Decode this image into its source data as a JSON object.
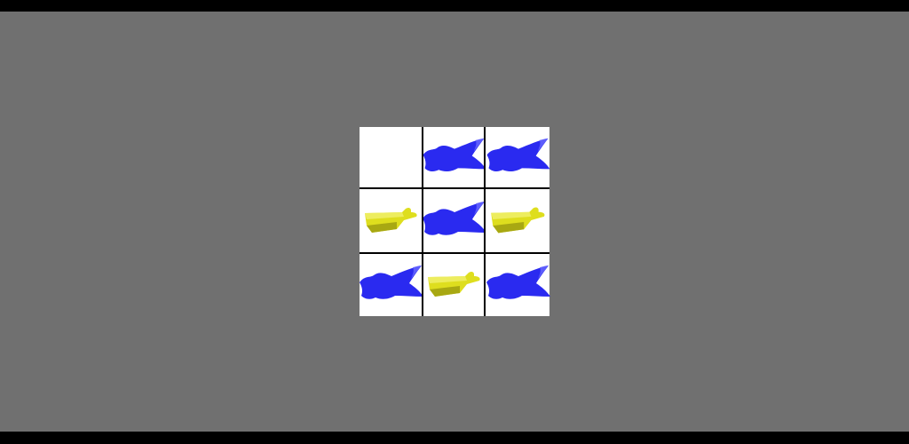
{
  "game": {
    "type": "tic-tac-toe",
    "colors": {
      "background": "#707070",
      "board": "#ffffff",
      "grid_line": "#000000",
      "blue_piece": "#2a2af0",
      "blue_piece_highlight": "#6a6aff",
      "yellow_piece": "#dede1e",
      "yellow_piece_shadow": "#a8a812",
      "yellow_piece_highlight": "#f4f47a"
    },
    "board": [
      [
        "empty",
        "blue-star",
        "blue-star"
      ],
      [
        "yellow-boat",
        "blue-star",
        "yellow-boat"
      ],
      [
        "blue-star",
        "yellow-boat",
        "blue-star"
      ]
    ]
  }
}
